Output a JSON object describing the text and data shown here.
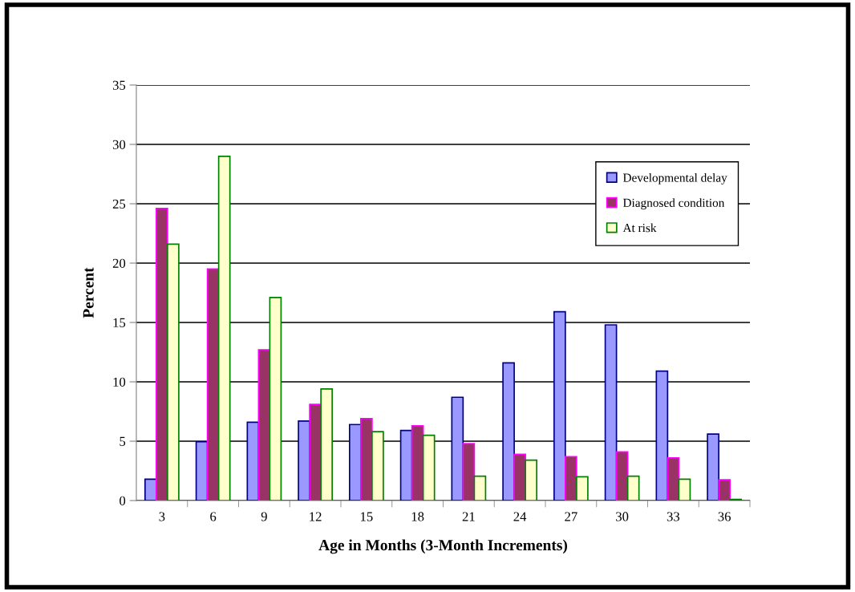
{
  "chart_data": {
    "type": "bar",
    "xlabel": "Age in Months (3-Month Increments)",
    "ylabel": "Percent",
    "categories": [
      "3",
      "6",
      "9",
      "12",
      "15",
      "18",
      "21",
      "24",
      "27",
      "30",
      "33",
      "36"
    ],
    "series": [
      {
        "name": "Developmental delay",
        "color": "#9999ff",
        "values": [
          1.8,
          4.95,
          6.6,
          6.7,
          6.4,
          5.9,
          8.7,
          11.6,
          15.9,
          14.8,
          10.9,
          5.6
        ]
      },
      {
        "name": "Diagnosed condition",
        "color": "#993366",
        "values": [
          24.6,
          19.5,
          12.7,
          8.1,
          6.9,
          6.3,
          4.8,
          3.9,
          3.7,
          4.1,
          3.6,
          1.75
        ]
      },
      {
        "name": "At risk",
        "color": "#ffffcc",
        "values": [
          21.6,
          29.0,
          17.1,
          9.4,
          5.8,
          5.5,
          2.05,
          3.4,
          2.0,
          2.05,
          1.8,
          0.1
        ]
      }
    ],
    "ylim": [
      0,
      35
    ],
    "yticks": [
      0,
      5,
      10,
      15,
      20,
      25,
      30,
      35
    ],
    "grid": "y",
    "legend": "top right"
  }
}
